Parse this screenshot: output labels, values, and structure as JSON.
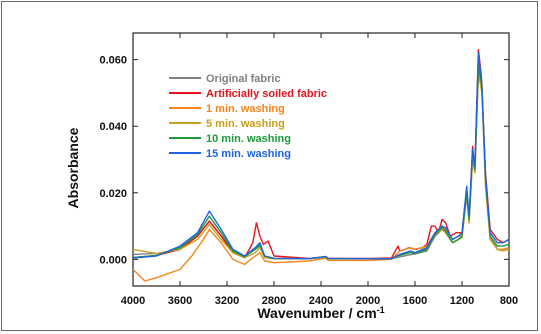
{
  "chart_data": {
    "type": "line",
    "xlabel": "Wavenumber / cm",
    "xlabel_superscript": "-1",
    "ylabel": "Absorbance",
    "xlim": [
      4000,
      800
    ],
    "x_reversed": true,
    "ylim": [
      -0.008,
      0.068
    ],
    "x_ticks": [
      4000,
      3600,
      3200,
      2800,
      2400,
      2000,
      1600,
      1200,
      800
    ],
    "x_tick_labels": [
      "4000",
      "3600",
      "3200",
      "2800",
      "2400",
      "2000",
      "1600",
      "1200",
      "800"
    ],
    "y_ticks": [
      0.0,
      0.02,
      0.04,
      0.06
    ],
    "y_tick_labels": [
      "0.000",
      "0.020",
      "0.040",
      "0.060"
    ],
    "grid": false,
    "legend_position": "top-left",
    "series": [
      {
        "name": "Original fabric",
        "color": "#7f7f7f",
        "points": [
          [
            4000,
            0.0015
          ],
          [
            3800,
            0.0018
          ],
          [
            3600,
            0.003
          ],
          [
            3450,
            0.007
          ],
          [
            3350,
            0.0115
          ],
          [
            3250,
            0.007
          ],
          [
            3150,
            0.0025
          ],
          [
            3050,
            0.001
          ],
          [
            2960,
            0.003
          ],
          [
            2920,
            0.004
          ],
          [
            2880,
            0.001
          ],
          [
            2800,
            0.0003
          ],
          [
            2500,
            0.0002
          ],
          [
            2360,
            0.0008
          ],
          [
            2340,
            0.0003
          ],
          [
            2200,
            0.0002
          ],
          [
            2000,
            0.0002
          ],
          [
            1800,
            0.0002
          ],
          [
            1730,
            0.0007
          ],
          [
            1640,
            0.0014
          ],
          [
            1600,
            0.0016
          ],
          [
            1500,
            0.0025
          ],
          [
            1430,
            0.007
          ],
          [
            1370,
            0.009
          ],
          [
            1340,
            0.008
          ],
          [
            1280,
            0.005
          ],
          [
            1230,
            0.006
          ],
          [
            1200,
            0.007
          ],
          [
            1160,
            0.02
          ],
          [
            1140,
            0.012
          ],
          [
            1110,
            0.031
          ],
          [
            1090,
            0.028
          ],
          [
            1060,
            0.06
          ],
          [
            1030,
            0.052
          ],
          [
            1000,
            0.025
          ],
          [
            960,
            0.007
          ],
          [
            900,
            0.003
          ],
          [
            850,
            0.003
          ],
          [
            800,
            0.0035
          ]
        ]
      },
      {
        "name": "Artificially soiled fabric",
        "color": "#e8141c",
        "points": [
          [
            4000,
            0.0005
          ],
          [
            3800,
            0.0012
          ],
          [
            3600,
            0.003
          ],
          [
            3450,
            0.007
          ],
          [
            3350,
            0.0115
          ],
          [
            3250,
            0.007
          ],
          [
            3150,
            0.002
          ],
          [
            3050,
            0.0005
          ],
          [
            2980,
            0.005
          ],
          [
            2950,
            0.011
          ],
          [
            2920,
            0.007
          ],
          [
            2890,
            0.0045
          ],
          [
            2850,
            0.0055
          ],
          [
            2800,
            0.001
          ],
          [
            2500,
            0.0003
          ],
          [
            2360,
            0.0008
          ],
          [
            2340,
            0.0003
          ],
          [
            2000,
            0.0003
          ],
          [
            1800,
            0.0004
          ],
          [
            1745,
            0.004
          ],
          [
            1730,
            0.0025
          ],
          [
            1700,
            0.0028
          ],
          [
            1650,
            0.0035
          ],
          [
            1600,
            0.003
          ],
          [
            1540,
            0.0035
          ],
          [
            1500,
            0.0045
          ],
          [
            1460,
            0.01
          ],
          [
            1430,
            0.01
          ],
          [
            1400,
            0.008
          ],
          [
            1370,
            0.012
          ],
          [
            1340,
            0.011
          ],
          [
            1300,
            0.007
          ],
          [
            1250,
            0.008
          ],
          [
            1200,
            0.008
          ],
          [
            1160,
            0.021
          ],
          [
            1140,
            0.012
          ],
          [
            1110,
            0.034
          ],
          [
            1090,
            0.027
          ],
          [
            1060,
            0.063
          ],
          [
            1035,
            0.055
          ],
          [
            1000,
            0.026
          ],
          [
            960,
            0.009
          ],
          [
            900,
            0.006
          ],
          [
            850,
            0.005
          ],
          [
            800,
            0.006
          ]
        ]
      },
      {
        "name": "1 min. washing",
        "color": "#f5861f",
        "points": [
          [
            4000,
            -0.003
          ],
          [
            3900,
            -0.0065
          ],
          [
            3800,
            -0.0055
          ],
          [
            3600,
            -0.003
          ],
          [
            3500,
            0.001
          ],
          [
            3400,
            0.006
          ],
          [
            3350,
            0.009
          ],
          [
            3250,
            0.005
          ],
          [
            3150,
            0.0
          ],
          [
            3050,
            -0.0015
          ],
          [
            2960,
            0.001
          ],
          [
            2920,
            0.002
          ],
          [
            2880,
            -0.0005
          ],
          [
            2800,
            -0.001
          ],
          [
            2500,
            -0.0005
          ],
          [
            2360,
            0.0004
          ],
          [
            2340,
            -0.0003
          ],
          [
            2000,
            -0.0003
          ],
          [
            1800,
            0.0
          ],
          [
            1730,
            0.0025
          ],
          [
            1640,
            0.0035
          ],
          [
            1600,
            0.003
          ],
          [
            1500,
            0.004
          ],
          [
            1430,
            0.008
          ],
          [
            1370,
            0.01
          ],
          [
            1340,
            0.009
          ],
          [
            1280,
            0.006
          ],
          [
            1230,
            0.007
          ],
          [
            1200,
            0.007
          ],
          [
            1160,
            0.02
          ],
          [
            1140,
            0.011
          ],
          [
            1110,
            0.031
          ],
          [
            1090,
            0.026
          ],
          [
            1060,
            0.057
          ],
          [
            1030,
            0.05
          ],
          [
            1000,
            0.022
          ],
          [
            960,
            0.006
          ],
          [
            900,
            0.003
          ],
          [
            850,
            0.003
          ],
          [
            800,
            0.0035
          ]
        ]
      },
      {
        "name": "5 min. washing",
        "color": "#c8a01e",
        "points": [
          [
            4000,
            0.003
          ],
          [
            3800,
            0.0018
          ],
          [
            3600,
            0.003
          ],
          [
            3450,
            0.006
          ],
          [
            3350,
            0.0105
          ],
          [
            3250,
            0.006
          ],
          [
            3150,
            0.002
          ],
          [
            3050,
            0.0005
          ],
          [
            2960,
            0.002
          ],
          [
            2920,
            0.0035
          ],
          [
            2880,
            0.0005
          ],
          [
            2800,
            0.0002
          ],
          [
            2500,
            0.0002
          ],
          [
            2360,
            0.0007
          ],
          [
            2340,
            0.0002
          ],
          [
            2000,
            0.0002
          ],
          [
            1800,
            0.0002
          ],
          [
            1730,
            0.0012
          ],
          [
            1640,
            0.0025
          ],
          [
            1600,
            0.002
          ],
          [
            1500,
            0.003
          ],
          [
            1430,
            0.0075
          ],
          [
            1370,
            0.009
          ],
          [
            1340,
            0.008
          ],
          [
            1280,
            0.005
          ],
          [
            1230,
            0.006
          ],
          [
            1200,
            0.0065
          ],
          [
            1160,
            0.019
          ],
          [
            1140,
            0.011
          ],
          [
            1110,
            0.03
          ],
          [
            1090,
            0.026
          ],
          [
            1060,
            0.056
          ],
          [
            1030,
            0.05
          ],
          [
            1000,
            0.022
          ],
          [
            960,
            0.006
          ],
          [
            900,
            0.003
          ],
          [
            850,
            0.0025
          ],
          [
            800,
            0.003
          ]
        ]
      },
      {
        "name": "10 min. washing",
        "color": "#1e9a3c",
        "points": [
          [
            4000,
            0.0006
          ],
          [
            3800,
            0.0012
          ],
          [
            3600,
            0.0035
          ],
          [
            3450,
            0.0075
          ],
          [
            3350,
            0.013
          ],
          [
            3250,
            0.008
          ],
          [
            3150,
            0.0025
          ],
          [
            3050,
            0.0008
          ],
          [
            2960,
            0.003
          ],
          [
            2920,
            0.0045
          ],
          [
            2880,
            0.001
          ],
          [
            2800,
            0.0003
          ],
          [
            2500,
            0.0002
          ],
          [
            2360,
            0.0008
          ],
          [
            2340,
            0.0002
          ],
          [
            2000,
            0.0002
          ],
          [
            1800,
            0.0002
          ],
          [
            1730,
            0.0012
          ],
          [
            1640,
            0.002
          ],
          [
            1600,
            0.0018
          ],
          [
            1500,
            0.003
          ],
          [
            1430,
            0.0075
          ],
          [
            1370,
            0.0095
          ],
          [
            1340,
            0.0085
          ],
          [
            1280,
            0.005
          ],
          [
            1230,
            0.006
          ],
          [
            1200,
            0.007
          ],
          [
            1160,
            0.02
          ],
          [
            1140,
            0.012
          ],
          [
            1110,
            0.032
          ],
          [
            1090,
            0.027
          ],
          [
            1060,
            0.058
          ],
          [
            1030,
            0.052
          ],
          [
            1000,
            0.024
          ],
          [
            960,
            0.007
          ],
          [
            900,
            0.004
          ],
          [
            850,
            0.004
          ],
          [
            800,
            0.0045
          ]
        ]
      },
      {
        "name": "15 min. washing",
        "color": "#1e64e0",
        "points": [
          [
            4000,
            0.0004
          ],
          [
            3800,
            0.001
          ],
          [
            3600,
            0.004
          ],
          [
            3450,
            0.008
          ],
          [
            3350,
            0.0145
          ],
          [
            3250,
            0.009
          ],
          [
            3150,
            0.003
          ],
          [
            3050,
            0.001
          ],
          [
            2960,
            0.0035
          ],
          [
            2920,
            0.005
          ],
          [
            2880,
            0.001
          ],
          [
            2800,
            0.0003
          ],
          [
            2500,
            0.0002
          ],
          [
            2360,
            0.0009
          ],
          [
            2340,
            0.0003
          ],
          [
            2000,
            0.0002
          ],
          [
            1800,
            0.0002
          ],
          [
            1730,
            0.0015
          ],
          [
            1640,
            0.0025
          ],
          [
            1600,
            0.002
          ],
          [
            1500,
            0.0035
          ],
          [
            1430,
            0.008
          ],
          [
            1370,
            0.01
          ],
          [
            1340,
            0.0095
          ],
          [
            1280,
            0.006
          ],
          [
            1230,
            0.007
          ],
          [
            1200,
            0.008
          ],
          [
            1160,
            0.022
          ],
          [
            1140,
            0.013
          ],
          [
            1110,
            0.033
          ],
          [
            1090,
            0.028
          ],
          [
            1060,
            0.062
          ],
          [
            1035,
            0.054
          ],
          [
            1000,
            0.025
          ],
          [
            960,
            0.008
          ],
          [
            900,
            0.005
          ],
          [
            850,
            0.005
          ],
          [
            800,
            0.006
          ]
        ]
      }
    ]
  }
}
